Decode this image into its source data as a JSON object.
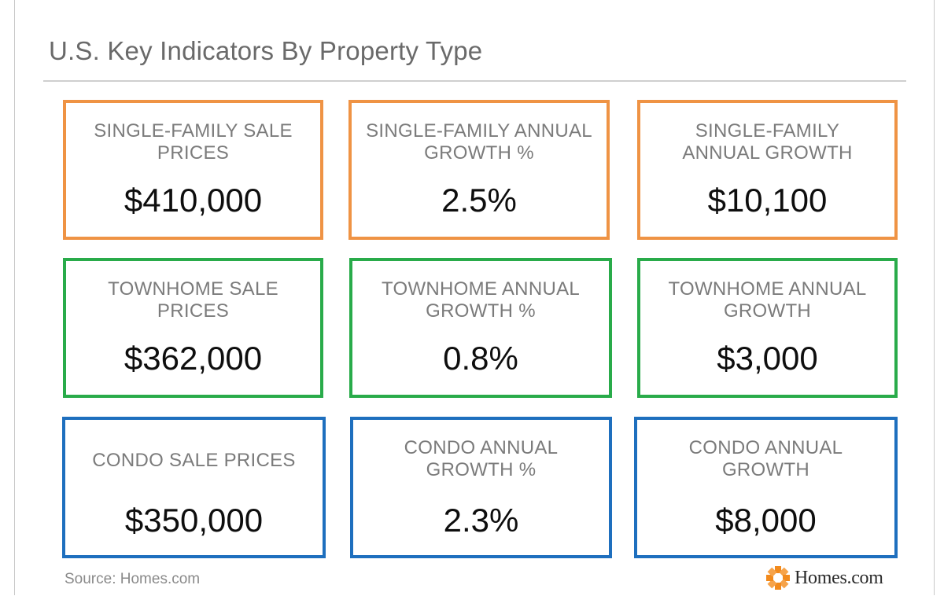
{
  "title": "U.S. Key Indicators By Property Type",
  "colors": {
    "single_family": "#ef9344",
    "townhome": "#29ab4a",
    "condo": "#1e6fbe"
  },
  "cards": [
    {
      "label": "SINGLE-FAMILY SALE PRICES",
      "value": "$410,000"
    },
    {
      "label": "SINGLE-FAMILY ANNUAL GROWTH %",
      "value": "2.5%"
    },
    {
      "label": "SINGLE-FAMILY ANNUAL GROWTH",
      "value": "$10,100"
    },
    {
      "label": "TOWNHOME SALE PRICES",
      "value": "$362,000"
    },
    {
      "label": "TOWNHOME ANNUAL GROWTH %",
      "value": "0.8%"
    },
    {
      "label": "TOWNHOME ANNUAL GROWTH",
      "value": "$3,000"
    },
    {
      "label": "CONDO SALE PRICES",
      "value": "$350,000"
    },
    {
      "label": "CONDO ANNUAL GROWTH %",
      "value": "2.3%"
    },
    {
      "label": "CONDO ANNUAL GROWTH",
      "value": "$8,000"
    }
  ],
  "footer": {
    "source": "Source: Homes.com",
    "logo_text": "Homes.com",
    "logo_icon": "homes-com-logo-icon"
  }
}
